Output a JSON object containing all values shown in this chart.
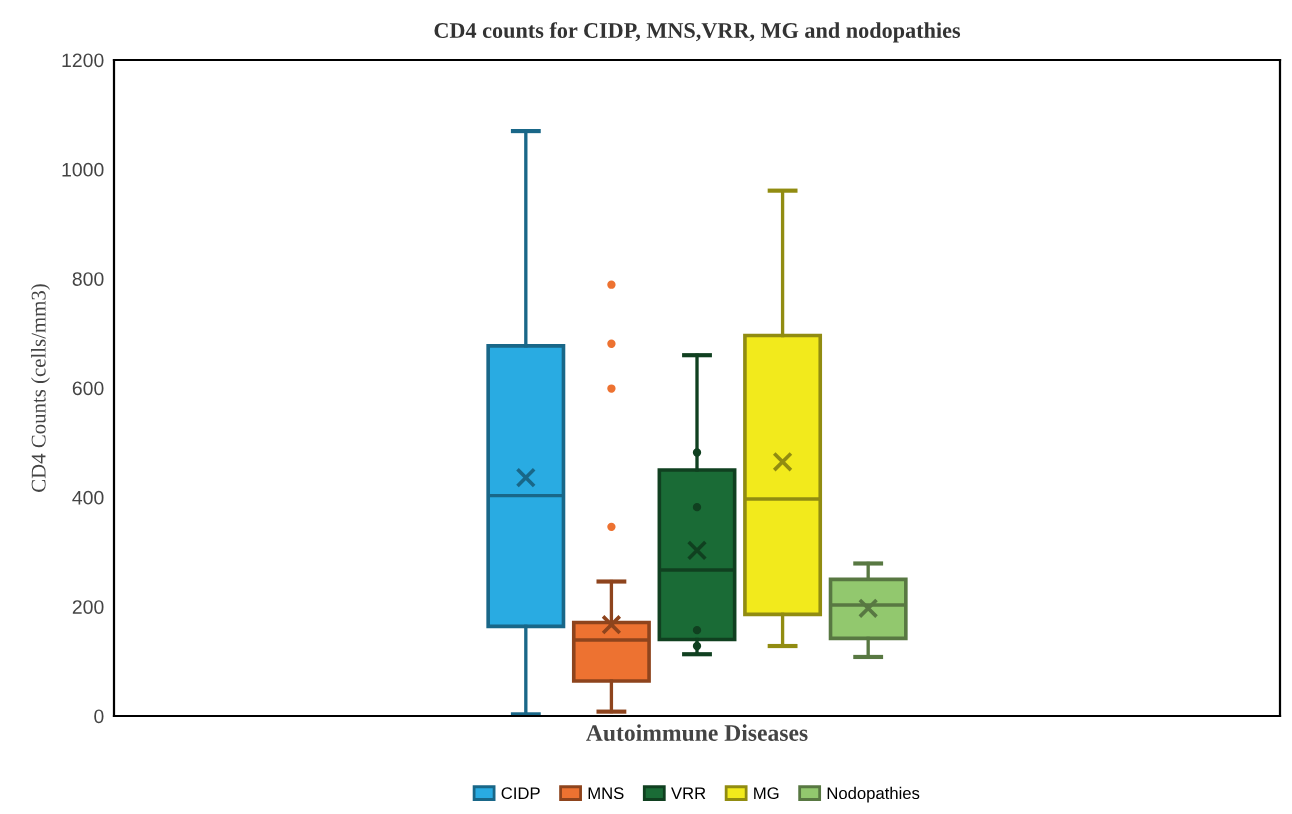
{
  "chart_data": {
    "type": "box",
    "title": "CD4 counts for CIDP, MNS,VRR, MG and nodopathies",
    "xlabel": "Autoimmune Diseases",
    "ylabel": "CD4 Counts (cells/mm3)",
    "categories": [
      null
    ],
    "series": [
      {
        "name": "CIDP",
        "color": "#29abe2",
        "boxes": [
          {
            "low": 3,
            "q1": 164,
            "median": 403,
            "q3": 677,
            "high": 1070,
            "mean": 436
          }
        ]
      },
      {
        "name": "MNS",
        "color": "#ed7231",
        "boxes": [
          {
            "low": 8,
            "q1": 64,
            "median": 139,
            "q3": 171,
            "high": 246,
            "mean": 167,
            "outliers": [
              346,
              599,
              681,
              789
            ]
          }
        ]
      },
      {
        "name": "VRR",
        "color": "#1a6b36",
        "boxes": [
          {
            "low": 113,
            "q1": 140,
            "median": 267,
            "q3": 450,
            "high": 660,
            "mean": 303,
            "outliers": [
              128,
              157,
              382,
              482
            ]
          }
        ]
      },
      {
        "name": "MG",
        "color": "#f2ea1c",
        "boxes": [
          {
            "low": 128,
            "q1": 186,
            "median": 397,
            "q3": 696,
            "high": 961,
            "mean": 465
          }
        ]
      },
      {
        "name": "Nodopathies",
        "color": "#92c86e",
        "boxes": [
          {
            "low": 108,
            "q1": 142,
            "median": 203,
            "q3": 250,
            "high": 279,
            "mean": 197
          }
        ]
      }
    ],
    "ylim": [
      0,
      1200
    ],
    "yticks": [
      0,
      200,
      400,
      600,
      800,
      1000,
      1200
    ],
    "grid": false,
    "legend": "bottom",
    "marker": "cross"
  }
}
